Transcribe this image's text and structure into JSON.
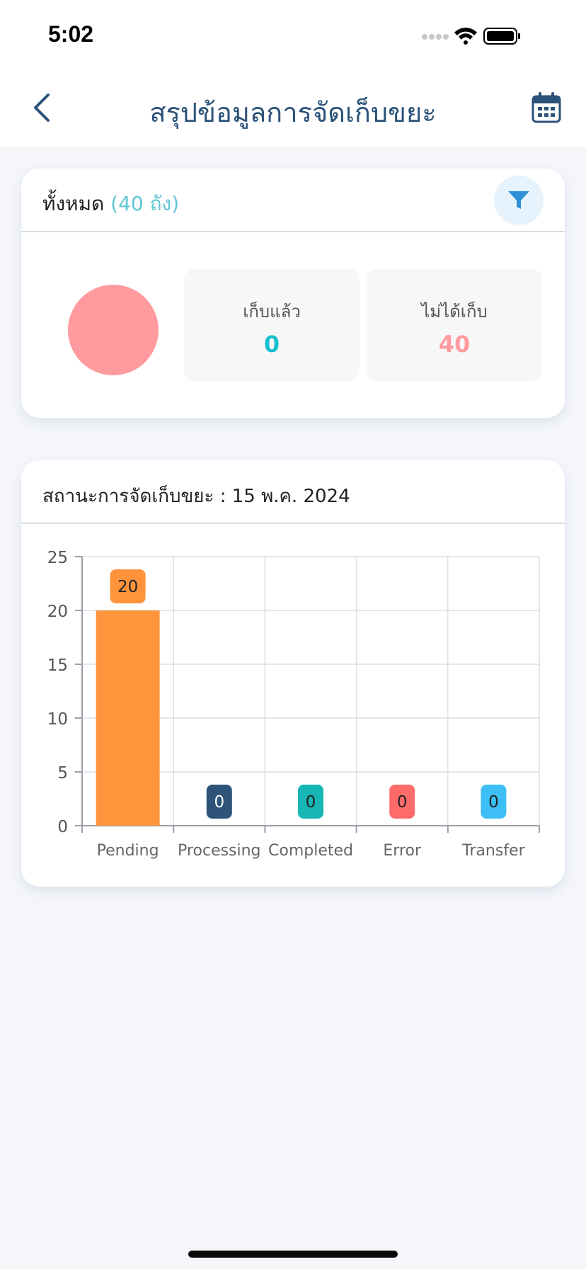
{
  "status_bar": {
    "time": "5:02"
  },
  "header": {
    "title": "สรุปข้อมูลการจัดเก็บขยะ"
  },
  "summary": {
    "label": "ทั้งหมด",
    "count_text": "(40 ถัง)",
    "collected_label": "เก็บแล้ว",
    "collected_value": "0",
    "not_collected_label": "ไม่ได้เก็บ",
    "not_collected_value": "40",
    "pie_color": "#ff9a9e"
  },
  "status_card": {
    "title": "สถานะการจัดเก็บขยะ : 15 พ.ค. 2024"
  },
  "chart_data": {
    "type": "bar",
    "categories": [
      "Pending",
      "Processing",
      "Completed",
      "Error",
      "Transfer"
    ],
    "values": [
      20,
      0,
      0,
      0,
      0
    ],
    "colors": [
      "#ff943d",
      "#2d5478",
      "#15b6b3",
      "#ff6b6b",
      "#3dbef5"
    ],
    "ylim": [
      0,
      25
    ],
    "yticks": [
      0,
      5,
      10,
      15,
      20,
      25
    ],
    "grid": true
  }
}
